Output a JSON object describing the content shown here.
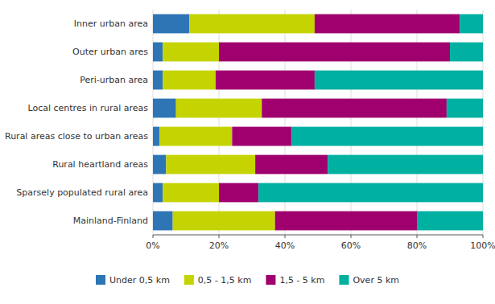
{
  "chart_data": {
    "type": "bar",
    "orientation": "horizontal",
    "stacked": true,
    "categories": [
      "Inner urban area",
      "Outer urban ares",
      "Peri-urban area",
      "Local centres in rural areas",
      "Rural areas close to urban areas",
      "Rural heartland areas",
      "Sparsely populated rural area",
      "Mainland-Finland"
    ],
    "series": [
      {
        "name": "Under 0,5 km",
        "color": "#2e75b6",
        "values": [
          11,
          3,
          3,
          7,
          2,
          4,
          3,
          6
        ]
      },
      {
        "name": "0,5 - 1,5 km",
        "color": "#c5d400",
        "values": [
          38,
          17,
          16,
          26,
          22,
          27,
          17,
          31
        ]
      },
      {
        "name": "1,5 - 5 km",
        "color": "#a0006e",
        "values": [
          44,
          70,
          30,
          56,
          18,
          22,
          12,
          43
        ]
      },
      {
        "name": "Over 5 km",
        "color": "#00b0a0",
        "values": [
          7,
          10,
          51,
          11,
          58,
          47,
          68,
          20
        ]
      }
    ],
    "xlim": [
      0,
      100
    ],
    "xticks": [
      {
        "value": 0,
        "label": "0%"
      },
      {
        "value": 20,
        "label": "20%"
      },
      {
        "value": 40,
        "label": "40%"
      },
      {
        "value": 60,
        "label": "60%"
      },
      {
        "value": 80,
        "label": "80%"
      },
      {
        "value": 100,
        "label": "100%"
      }
    ],
    "grid": true,
    "legend": "bottom"
  }
}
